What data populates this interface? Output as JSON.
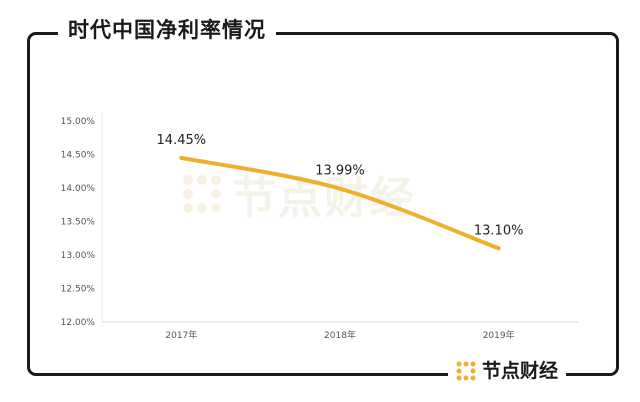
{
  "header": {
    "title": "时代中国净利率情况"
  },
  "brand": {
    "name": "节点财经",
    "watermark": "节点财经"
  },
  "colors": {
    "line": "#eeb02c",
    "frame": "#1a1a1a",
    "grid": "#e6e6e6",
    "text": "#333333"
  },
  "chart_data": {
    "type": "line",
    "categories": [
      "2017年",
      "2018年",
      "2019年"
    ],
    "series": [
      {
        "values": [
          14.45,
          13.99,
          13.1
        ]
      }
    ],
    "data_labels": [
      "14.45%",
      "13.99%",
      "13.10%"
    ],
    "y_ticks": [
      "15.00%",
      "14.50%",
      "14.00%",
      "13.50%",
      "13.00%",
      "12.50%",
      "12.00%"
    ],
    "ylim": [
      12.0,
      15.0
    ],
    "grid": false,
    "legend": "none"
  }
}
